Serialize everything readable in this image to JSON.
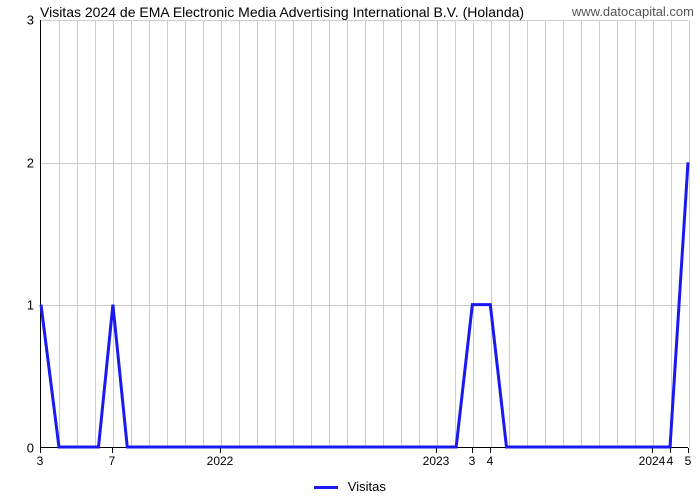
{
  "chart": {
    "type": "line",
    "title": "Visitas 2024 de EMA Electronic Media Advertising International B.V. (Holanda)",
    "watermark": "www.datocapital.com",
    "background_color": "#ffffff",
    "grid_color": "#cccccc",
    "axis_color": "#000000",
    "line_color": "#1a1af0",
    "line_width": 3,
    "title_fontsize": 14,
    "label_fontsize": 13,
    "ylim": [
      0,
      3
    ],
    "yticks": [
      0,
      1,
      2,
      3
    ],
    "ytick_labels": [
      "0",
      "1",
      "2",
      "3"
    ],
    "x_range": [
      0,
      36
    ],
    "x_major_ticks": [
      {
        "pos": 0,
        "label": "3"
      },
      {
        "pos": 4,
        "label": "7"
      },
      {
        "pos": 10,
        "label": "2022"
      },
      {
        "pos": 22,
        "label": "2023"
      },
      {
        "pos": 24,
        "label": "3"
      },
      {
        "pos": 25,
        "label": "4"
      },
      {
        "pos": 34,
        "label": "2024"
      },
      {
        "pos": 35,
        "label": "4"
      },
      {
        "pos": 36,
        "label": "5"
      }
    ],
    "x_minor_grid": [
      0,
      1,
      2,
      3,
      4,
      5,
      6,
      7,
      8,
      9,
      10,
      11,
      12,
      13,
      14,
      15,
      16,
      17,
      18,
      19,
      20,
      21,
      22,
      23,
      24,
      25,
      26,
      27,
      28,
      29,
      30,
      31,
      32,
      33,
      34,
      35,
      36
    ],
    "series": [
      {
        "name": "Visitas",
        "points": [
          [
            0,
            1.0
          ],
          [
            1,
            0.0
          ],
          [
            3.2,
            0.0
          ],
          [
            4,
            1.0
          ],
          [
            4.8,
            0.0
          ],
          [
            23.1,
            0.0
          ],
          [
            24,
            1.0
          ],
          [
            25,
            1.0
          ],
          [
            25.9,
            0.0
          ],
          [
            35.0,
            0.0
          ],
          [
            36,
            2.0
          ]
        ]
      }
    ],
    "legend": {
      "label": "Visitas"
    }
  }
}
